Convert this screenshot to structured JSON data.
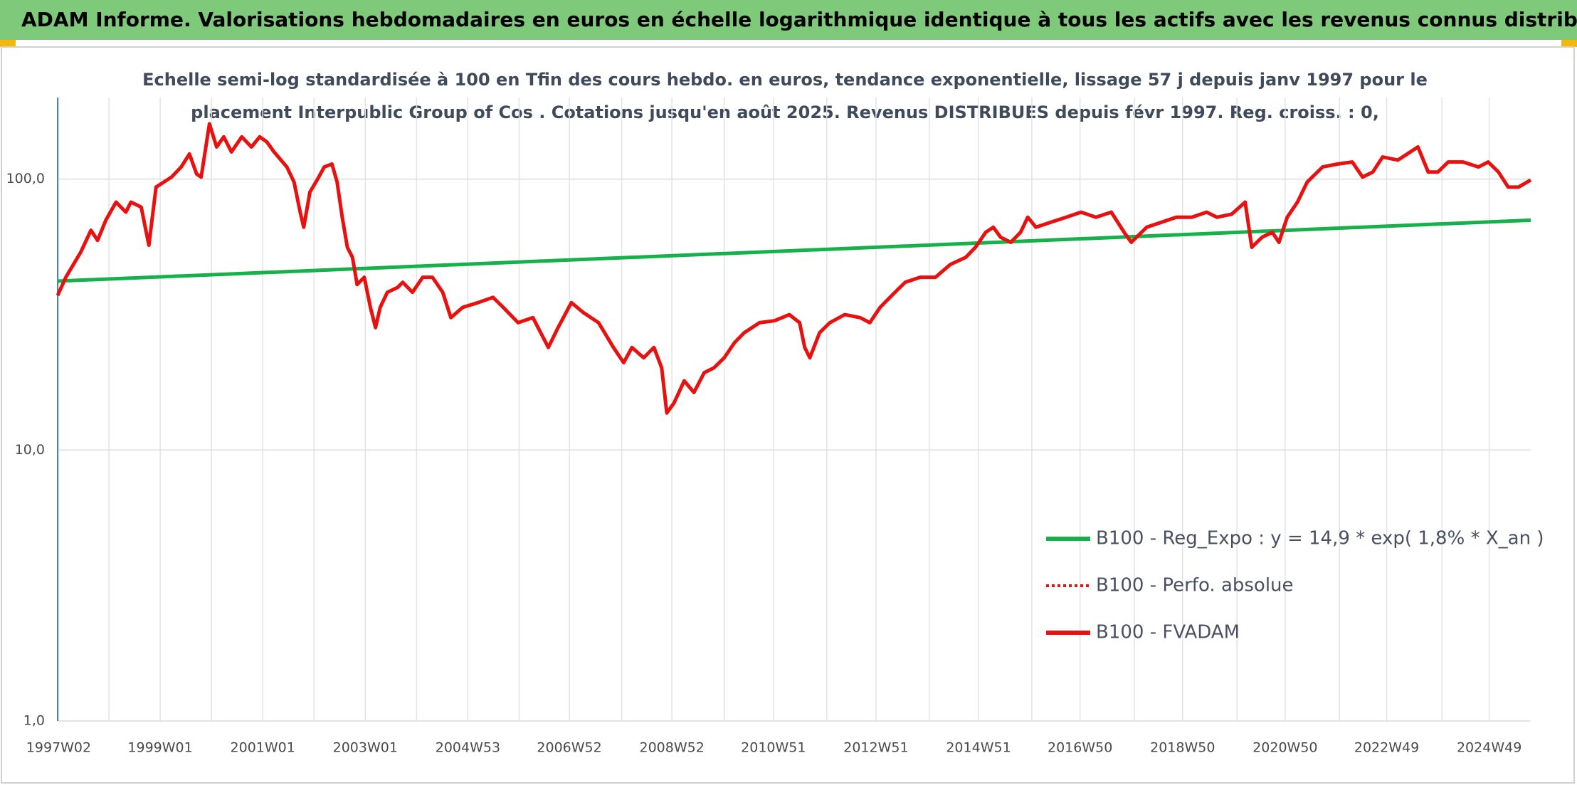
{
  "chart_data": {
    "type": "line",
    "title": "ADAM Informe. Valorisations hebdomadaires en euros en échelle logarithmique identique à tous les actifs avec les revenus connus distribués",
    "subtitle": [
      "Echelle semi-log standardisée à 100 en Tfin des cours hebdo. en euros, tendance exponentielle, lissage 57 j depuis janv 1997 pour le",
      "placement Interpublic Group of Cos . Cotations jusqu'en août 2025. Revenus DISTRIBUES depuis févr 1997. Reg. croiss. : 0,"
    ],
    "y_log": true,
    "ylim": [
      1,
      200
    ],
    "yticks": [
      {
        "value": 1,
        "label": "1,0"
      },
      {
        "value": 10,
        "label": "10,0"
      },
      {
        "value": 100,
        "label": "100,0"
      }
    ],
    "xlim": [
      1997,
      2025.73
    ],
    "xticks": [
      {
        "value": 1997.02,
        "label": "1997W02"
      },
      {
        "value": 1999,
        "label": "1999W01"
      },
      {
        "value": 2001,
        "label": "2001W01"
      },
      {
        "value": 2003,
        "label": "2003W01"
      },
      {
        "value": 2005,
        "label": "2004W53"
      },
      {
        "value": 2006.98,
        "label": "2006W52"
      },
      {
        "value": 2008.98,
        "label": "2008W52"
      },
      {
        "value": 2010.96,
        "label": "2010W51"
      },
      {
        "value": 2012.96,
        "label": "2012W51"
      },
      {
        "value": 2014.96,
        "label": "2014W51"
      },
      {
        "value": 2016.94,
        "label": "2016W50"
      },
      {
        "value": 2018.94,
        "label": "2018W50"
      },
      {
        "value": 2020.94,
        "label": "2020W50"
      },
      {
        "value": 2022.92,
        "label": "2022W49"
      },
      {
        "value": 2024.92,
        "label": "2024W49"
      }
    ],
    "x_minor_grid": [
      1998,
      2000,
      2002,
      2004,
      2006,
      2008,
      2010,
      2012,
      2014,
      2016,
      2018,
      2020,
      2022,
      2024
    ],
    "grid": true,
    "legend_position": "lower-right",
    "series": [
      {
        "name": "B100 - Reg_Expo : y = 14,9 * exp( 1,8% *  X_an )",
        "color": "#17b14b",
        "line_style": "solid",
        "x": [
          1997,
          2025.73
        ],
        "values": [
          42,
          70.5
        ]
      },
      {
        "name": "B100 - Perfo. absolue",
        "color": "#e8110f",
        "line_style": "dotted",
        "x": [],
        "values": []
      },
      {
        "name": "B100 - FVADAM",
        "color": "#e8110f",
        "line_style": "solid",
        "x": [
          1997.0,
          1997.16,
          1997.45,
          1997.65,
          1997.78,
          1997.94,
          1998.14,
          1998.33,
          1998.43,
          1998.63,
          1998.78,
          1998.92,
          1999.22,
          1999.41,
          1999.57,
          1999.71,
          1999.8,
          1999.96,
          2000.1,
          2000.24,
          2000.39,
          2000.59,
          2000.78,
          2000.94,
          2001.08,
          2001.22,
          2001.47,
          2001.61,
          2001.73,
          2001.8,
          2001.92,
          2002.06,
          2002.2,
          2002.35,
          2002.45,
          2002.55,
          2002.65,
          2002.75,
          2002.84,
          2002.98,
          2003.1,
          2003.2,
          2003.29,
          2003.43,
          2003.63,
          2003.73,
          2003.92,
          2004.12,
          2004.31,
          2004.51,
          2004.67,
          2004.9,
          2005.2,
          2005.49,
          2005.69,
          2005.98,
          2006.27,
          2006.57,
          2006.76,
          2007.02,
          2007.25,
          2007.55,
          2007.84,
          2008.04,
          2008.2,
          2008.43,
          2008.63,
          2008.78,
          2008.88,
          2009.02,
          2009.22,
          2009.41,
          2009.61,
          2009.8,
          2010.0,
          2010.2,
          2010.39,
          2010.69,
          2010.98,
          2011.27,
          2011.47,
          2011.57,
          2011.67,
          2011.86,
          2012.06,
          2012.35,
          2012.65,
          2012.84,
          2013.04,
          2013.33,
          2013.53,
          2013.82,
          2014.12,
          2014.41,
          2014.71,
          2014.9,
          2015.1,
          2015.25,
          2015.39,
          2015.59,
          2015.78,
          2015.92,
          2016.08,
          2016.37,
          2016.67,
          2016.96,
          2017.25,
          2017.55,
          2017.8,
          2017.94,
          2018.24,
          2018.53,
          2018.82,
          2019.12,
          2019.41,
          2019.61,
          2019.9,
          2020.16,
          2020.29,
          2020.49,
          2020.69,
          2020.82,
          2020.98,
          2021.18,
          2021.37,
          2021.67,
          2021.96,
          2022.25,
          2022.45,
          2022.65,
          2022.84,
          2023.14,
          2023.53,
          2023.73,
          2023.92,
          2024.12,
          2024.41,
          2024.71,
          2024.9,
          2025.1,
          2025.29,
          2025.49,
          2025.73
        ],
        "values": [
          37.2,
          43.4,
          53.7,
          64.7,
          59.4,
          70.5,
          82.2,
          75.5,
          82.2,
          78.8,
          57.0,
          93.4,
          101.7,
          110.8,
          123.8,
          104.4,
          101.7,
          159.9,
          131.4,
          143.1,
          125.9,
          143.1,
          131.4,
          143.1,
          137.1,
          125.9,
          110.8,
          97.5,
          75.5,
          66.4,
          89.5,
          99.2,
          110.8,
          113.6,
          97.5,
          72.3,
          56.0,
          51.4,
          40.8,
          43.4,
          33.6,
          28.3,
          33.6,
          38.2,
          39.8,
          41.6,
          38.2,
          43.4,
          43.4,
          38.2,
          30.8,
          33.6,
          35.0,
          36.6,
          33.6,
          29.5,
          30.8,
          23.9,
          28.3,
          35.0,
          32.2,
          29.5,
          23.9,
          21.0,
          23.9,
          21.9,
          23.9,
          20.1,
          13.7,
          14.9,
          18.0,
          16.3,
          19.3,
          20.1,
          21.9,
          24.9,
          27.1,
          29.5,
          30.0,
          31.6,
          29.5,
          23.9,
          21.9,
          27.1,
          29.5,
          31.6,
          30.8,
          29.5,
          33.6,
          38.2,
          41.6,
          43.4,
          43.4,
          48.4,
          51.4,
          56.0,
          63.6,
          66.4,
          61.0,
          58.4,
          63.6,
          72.3,
          66.4,
          69.3,
          72.3,
          75.5,
          72.3,
          75.5,
          63.6,
          58.4,
          66.4,
          69.3,
          72.3,
          72.3,
          75.5,
          72.3,
          74.2,
          82.2,
          56.0,
          61.0,
          63.6,
          58.4,
          72.3,
          82.2,
          97.5,
          110.8,
          113.6,
          115.6,
          101.7,
          106.2,
          120.6,
          117.5,
          131.4,
          106.2,
          106.2,
          115.6,
          115.6,
          110.8,
          115.6,
          106.2,
          93.4,
          93.4,
          99.2
        ]
      }
    ]
  }
}
